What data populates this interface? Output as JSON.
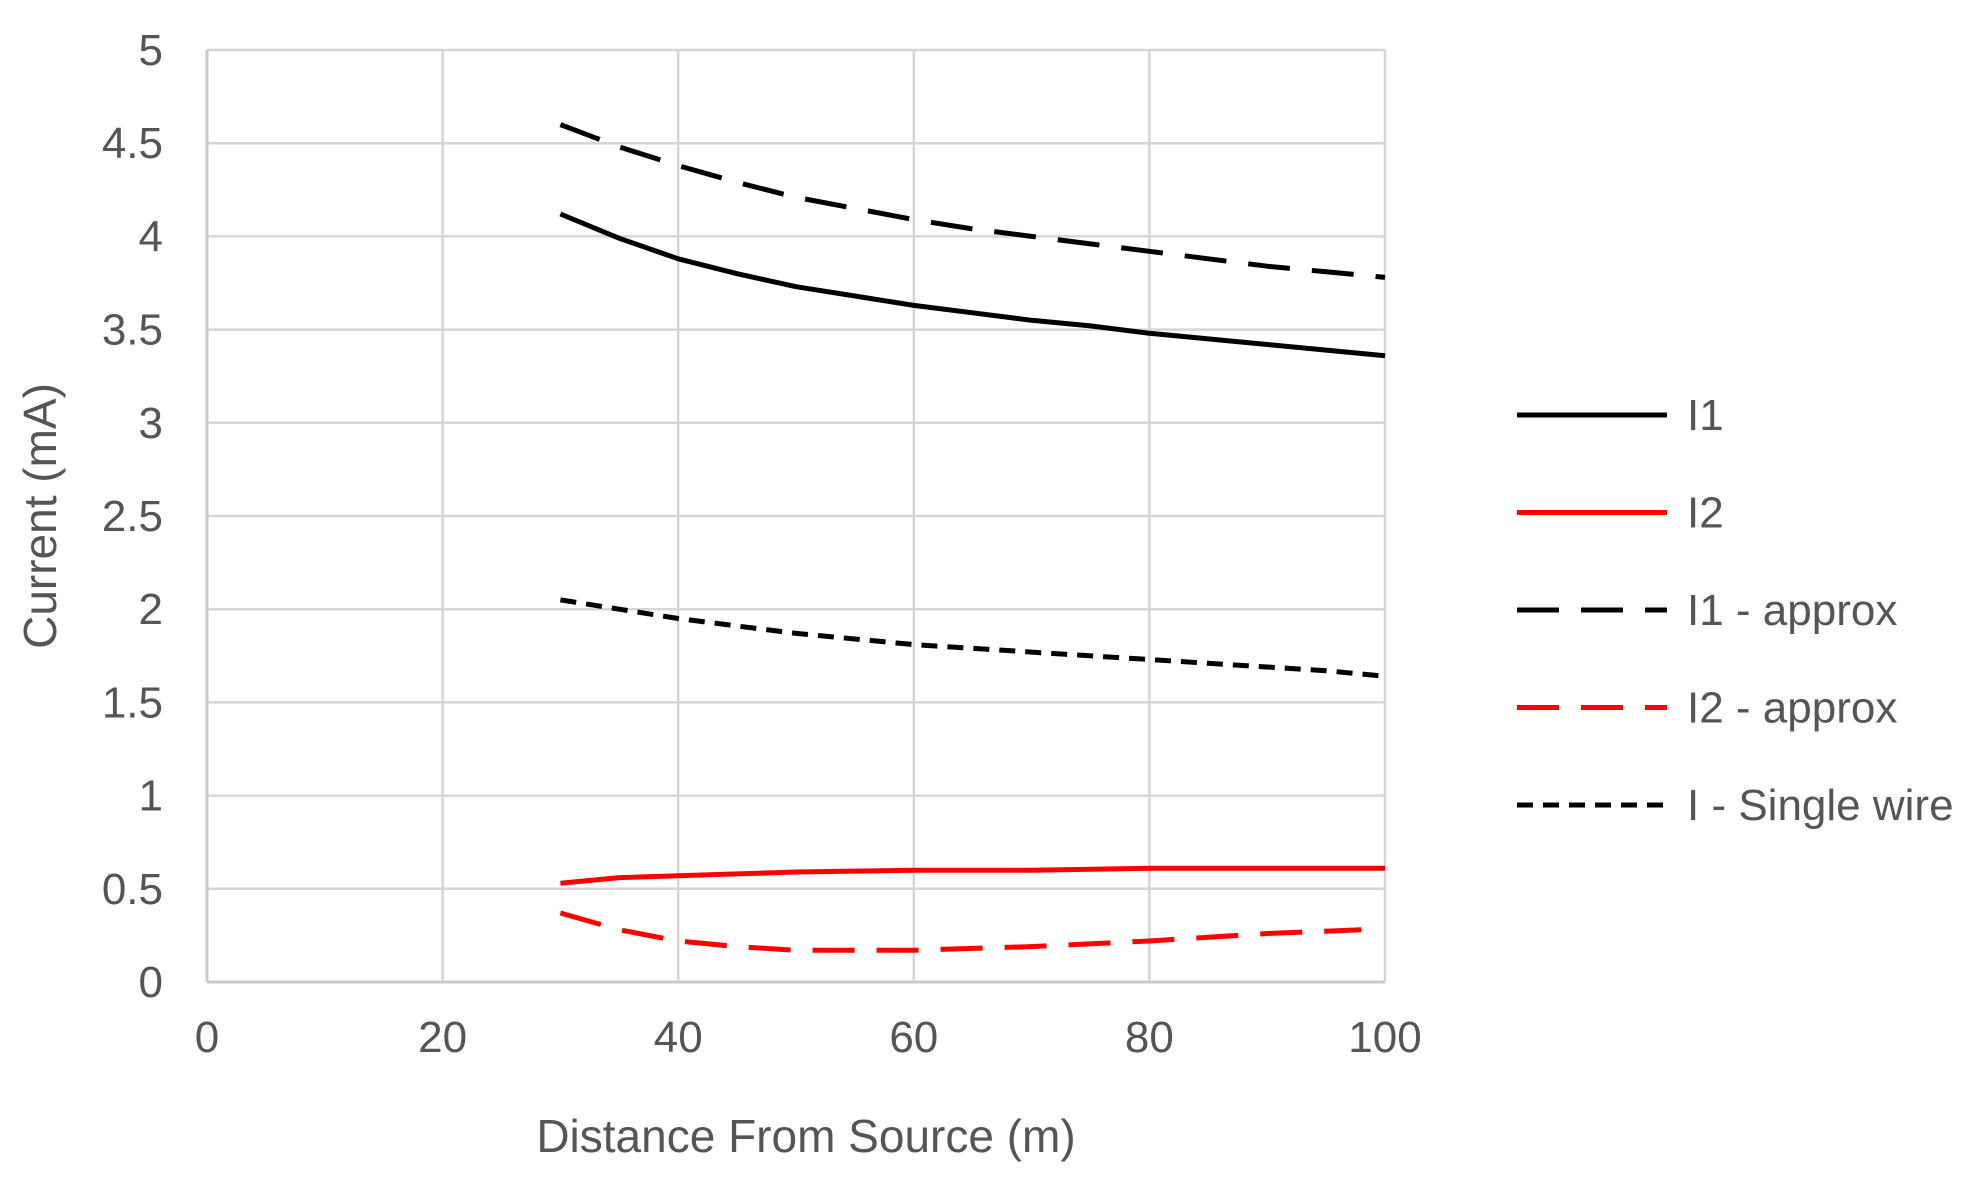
{
  "chart_data": {
    "type": "line",
    "title": "",
    "xlabel": "Distance From Source (m)",
    "ylabel": "Current (mA)",
    "xlim": [
      0,
      100
    ],
    "ylim": [
      0,
      5
    ],
    "xticks": [
      "0",
      "20",
      "40",
      "60",
      "80",
      "100"
    ],
    "yticks": [
      "0",
      "0.5",
      "1",
      "1.5",
      "2",
      "2.5",
      "3",
      "3.5",
      "4",
      "4.5",
      "5"
    ],
    "grid": true,
    "legend_position": "right",
    "series": [
      {
        "name": "I1",
        "color": "#000000",
        "dash": "solid",
        "x": [
          30,
          35,
          40,
          45,
          50,
          55,
          60,
          65,
          70,
          75,
          80,
          85,
          90,
          95,
          100
        ],
        "y": [
          4.12,
          3.99,
          3.88,
          3.8,
          3.73,
          3.68,
          3.63,
          3.59,
          3.55,
          3.52,
          3.48,
          3.45,
          3.42,
          3.39,
          3.36
        ]
      },
      {
        "name": "I2",
        "color": "#ff0000",
        "dash": "solid",
        "x": [
          30,
          35,
          40,
          45,
          50,
          60,
          70,
          80,
          90,
          100
        ],
        "y": [
          0.53,
          0.56,
          0.57,
          0.58,
          0.59,
          0.6,
          0.6,
          0.61,
          0.61,
          0.61
        ]
      },
      {
        "name": "I1 - approx",
        "color": "#000000",
        "dash": "long",
        "x": [
          30,
          35,
          40,
          45,
          50,
          55,
          60,
          65,
          70,
          75,
          80,
          85,
          90,
          95,
          100
        ],
        "y": [
          4.6,
          4.48,
          4.38,
          4.29,
          4.21,
          4.15,
          4.09,
          4.04,
          4.0,
          3.96,
          3.92,
          3.88,
          3.84,
          3.81,
          3.78
        ]
      },
      {
        "name": "I2 - approx",
        "color": "#ff0000",
        "dash": "long",
        "x": [
          30,
          35,
          40,
          45,
          50,
          55,
          60,
          65,
          70,
          80,
          90,
          98
        ],
        "y": [
          0.37,
          0.28,
          0.22,
          0.19,
          0.17,
          0.17,
          0.17,
          0.18,
          0.19,
          0.22,
          0.26,
          0.28
        ]
      },
      {
        "name": "I - Single wire",
        "color": "#000000",
        "dash": "short",
        "x": [
          30,
          35,
          40,
          45,
          50,
          55,
          60,
          65,
          70,
          75,
          80,
          85,
          90,
          95,
          100
        ],
        "y": [
          2.05,
          2.0,
          1.95,
          1.91,
          1.87,
          1.84,
          1.81,
          1.79,
          1.77,
          1.75,
          1.73,
          1.71,
          1.69,
          1.67,
          1.64
        ]
      }
    ]
  }
}
